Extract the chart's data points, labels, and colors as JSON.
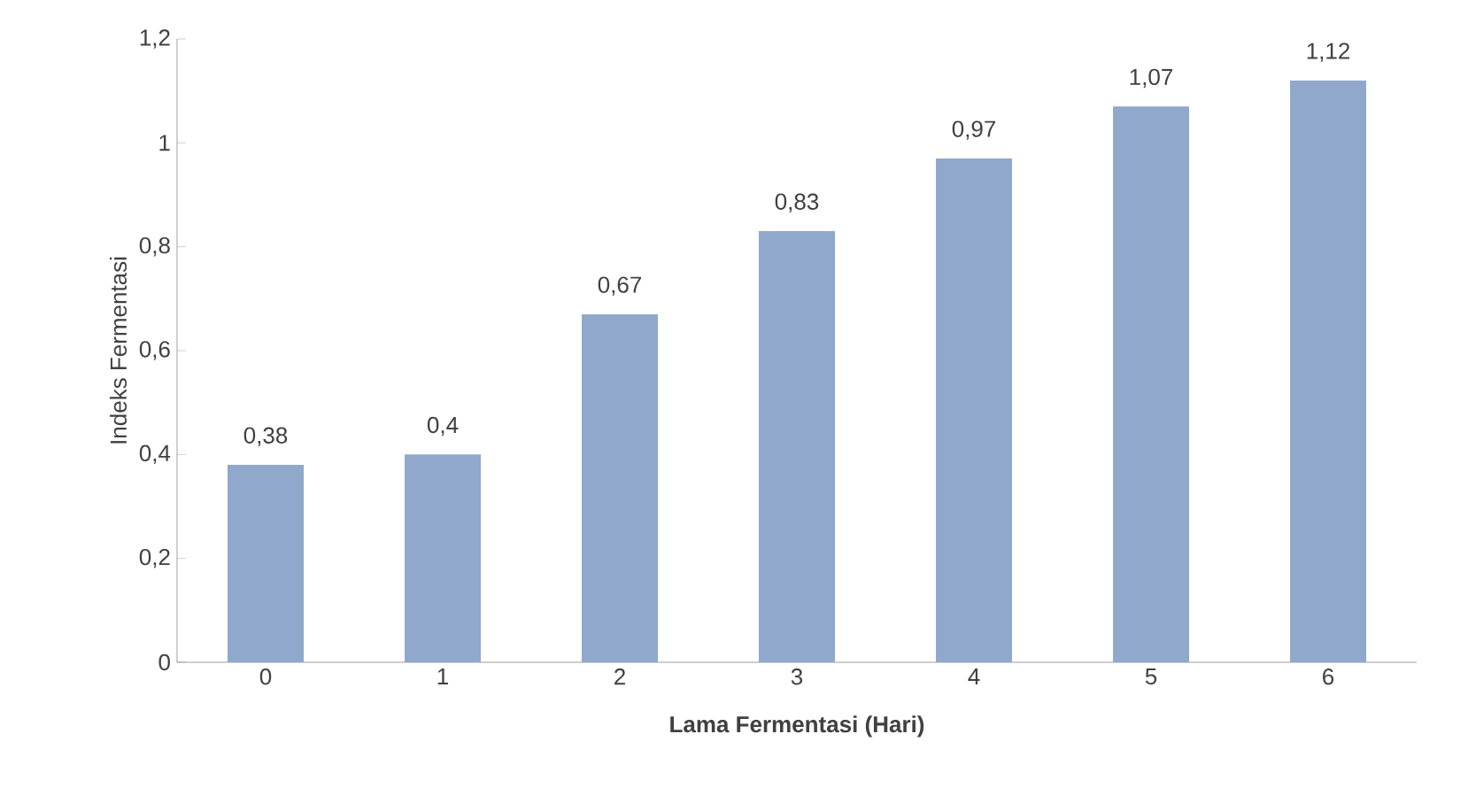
{
  "chart_data": {
    "type": "bar",
    "xlabel": "Lama Fermentasi (Hari)",
    "ylabel": "Indeks Fermentasi",
    "categories": [
      "0",
      "1",
      "2",
      "3",
      "4",
      "5",
      "6"
    ],
    "values": [
      0.38,
      0.4,
      0.67,
      0.83,
      0.97,
      1.07,
      1.12
    ],
    "value_labels": [
      "0,38",
      "0,4",
      "0,67",
      "0,83",
      "0,97",
      "1,07",
      "1,12"
    ],
    "color": "#8fa8cc",
    "ylim": [
      0,
      1.2
    ],
    "yticks": [
      0,
      {
        "value": 0.2,
        "label": "0,2"
      },
      {
        "value": 0.4,
        "label": "0,4"
      },
      {
        "value": 0.6,
        "label": "0,6"
      },
      {
        "value": 0.8,
        "label": "0,8"
      },
      1,
      {
        "value": 1.2,
        "label": "1,2"
      }
    ],
    "grid": false
  }
}
